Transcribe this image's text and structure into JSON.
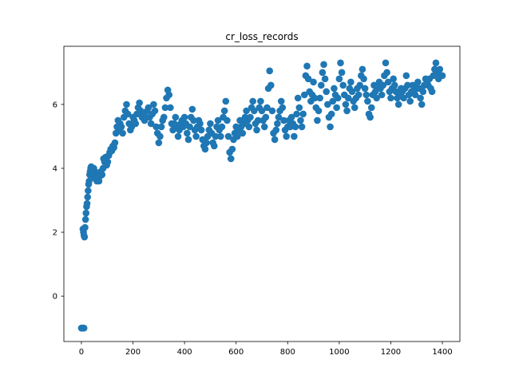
{
  "chart_data": {
    "type": "scatter",
    "title": "cr_loss_records",
    "xlabel": "",
    "ylabel": "",
    "xlim": [
      -68,
      1468
    ],
    "ylim": [
      -1.42,
      7.82
    ],
    "xticks": [
      0,
      200,
      400,
      600,
      800,
      1000,
      1200,
      1400
    ],
    "yticks": [
      0,
      2,
      4,
      6
    ],
    "grid": false,
    "marker_color": "#1f77b4",
    "points": [
      [
        0,
        -1.0
      ],
      [
        2,
        -1.0
      ],
      [
        4,
        -1.0
      ],
      [
        6,
        -1.0
      ],
      [
        8,
        -1.0
      ],
      [
        10,
        -1.0
      ],
      [
        6,
        2.1
      ],
      [
        8,
        2.0
      ],
      [
        10,
        1.9
      ],
      [
        12,
        1.85
      ],
      [
        14,
        2.15
      ],
      [
        16,
        2.4
      ],
      [
        18,
        2.6
      ],
      [
        20,
        2.8
      ],
      [
        22,
        2.9
      ],
      [
        24,
        3.1
      ],
      [
        26,
        3.3
      ],
      [
        28,
        3.5
      ],
      [
        30,
        3.6
      ],
      [
        32,
        3.8
      ],
      [
        34,
        3.9
      ],
      [
        36,
        4.0
      ],
      [
        38,
        4.05
      ],
      [
        40,
        3.9
      ],
      [
        42,
        4.0
      ],
      [
        45,
        3.8
      ],
      [
        48,
        4.0
      ],
      [
        50,
        3.7
      ],
      [
        53,
        3.9
      ],
      [
        56,
        3.8
      ],
      [
        60,
        3.6
      ],
      [
        64,
        3.7
      ],
      [
        68,
        3.6
      ],
      [
        72,
        3.75
      ],
      [
        76,
        3.9
      ],
      [
        80,
        3.8
      ],
      [
        84,
        4.0
      ],
      [
        86,
        4.3
      ],
      [
        90,
        4.2
      ],
      [
        94,
        4.35
      ],
      [
        98,
        4.1
      ],
      [
        102,
        4.2
      ],
      [
        106,
        4.4
      ],
      [
        110,
        4.5
      ],
      [
        114,
        4.6
      ],
      [
        118,
        4.55
      ],
      [
        122,
        4.7
      ],
      [
        126,
        4.65
      ],
      [
        130,
        4.8
      ],
      [
        134,
        5.1
      ],
      [
        138,
        5.3
      ],
      [
        142,
        5.5
      ],
      [
        146,
        5.2
      ],
      [
        150,
        5.4
      ],
      [
        155,
        5.3
      ],
      [
        160,
        5.1
      ],
      [
        165,
        5.6
      ],
      [
        170,
        5.8
      ],
      [
        175,
        6.0
      ],
      [
        180,
        5.7
      ],
      [
        185,
        5.4
      ],
      [
        190,
        5.2
      ],
      [
        195,
        5.3
      ],
      [
        200,
        5.6
      ],
      [
        205,
        5.5
      ],
      [
        210,
        5.4
      ],
      [
        215,
        5.7
      ],
      [
        220,
        5.9
      ],
      [
        225,
        6.05
      ],
      [
        230,
        5.8
      ],
      [
        235,
        5.6
      ],
      [
        240,
        5.7
      ],
      [
        245,
        5.5
      ],
      [
        250,
        5.6
      ],
      [
        255,
        5.8
      ],
      [
        260,
        5.9
      ],
      [
        265,
        5.6
      ],
      [
        270,
        5.4
      ],
      [
        275,
        5.7
      ],
      [
        280,
        6.0
      ],
      [
        285,
        5.8
      ],
      [
        290,
        5.3
      ],
      [
        295,
        5.1
      ],
      [
        300,
        4.8
      ],
      [
        305,
        5.0
      ],
      [
        310,
        5.3
      ],
      [
        315,
        5.5
      ],
      [
        320,
        5.6
      ],
      [
        325,
        5.9
      ],
      [
        330,
        6.2
      ],
      [
        335,
        6.45
      ],
      [
        340,
        6.3
      ],
      [
        345,
        5.9
      ],
      [
        350,
        5.4
      ],
      [
        355,
        5.2
      ],
      [
        360,
        5.4
      ],
      [
        365,
        5.6
      ],
      [
        370,
        5.3
      ],
      [
        375,
        5.0
      ],
      [
        380,
        5.2
      ],
      [
        385,
        5.4
      ],
      [
        390,
        5.5
      ],
      [
        395,
        5.3
      ],
      [
        400,
        5.6
      ],
      [
        405,
        5.4
      ],
      [
        410,
        5.1
      ],
      [
        415,
        4.9
      ],
      [
        420,
        5.3
      ],
      [
        425,
        5.6
      ],
      [
        430,
        5.85
      ],
      [
        435,
        5.5
      ],
      [
        440,
        5.2
      ],
      [
        445,
        5.0
      ],
      [
        450,
        5.3
      ],
      [
        455,
        5.5
      ],
      [
        460,
        5.4
      ],
      [
        465,
        5.2
      ],
      [
        470,
        4.9
      ],
      [
        475,
        4.7
      ],
      [
        480,
        4.6
      ],
      [
        485,
        4.8
      ],
      [
        490,
        5.0
      ],
      [
        495,
        5.2
      ],
      [
        500,
        5.4
      ],
      [
        505,
        5.1
      ],
      [
        510,
        4.8
      ],
      [
        515,
        4.7
      ],
      [
        520,
        5.0
      ],
      [
        525,
        5.3
      ],
      [
        530,
        5.5
      ],
      [
        535,
        5.2
      ],
      [
        540,
        5.0
      ],
      [
        545,
        5.3
      ],
      [
        550,
        5.6
      ],
      [
        555,
        5.8
      ],
      [
        560,
        6.1
      ],
      [
        565,
        5.5
      ],
      [
        570,
        5.0
      ],
      [
        575,
        4.5
      ],
      [
        580,
        4.3
      ],
      [
        585,
        4.6
      ],
      [
        590,
        4.9
      ],
      [
        595,
        5.1
      ],
      [
        600,
        5.3
      ],
      [
        605,
        5.0
      ],
      [
        610,
        5.2
      ],
      [
        615,
        5.5
      ],
      [
        620,
        5.3
      ],
      [
        625,
        5.1
      ],
      [
        630,
        5.4
      ],
      [
        635,
        5.6
      ],
      [
        640,
        5.8
      ],
      [
        645,
        5.5
      ],
      [
        650,
        5.3
      ],
      [
        655,
        5.6
      ],
      [
        660,
        5.9
      ],
      [
        665,
        6.1
      ],
      [
        670,
        5.8
      ],
      [
        675,
        5.4
      ],
      [
        680,
        5.2
      ],
      [
        685,
        5.5
      ],
      [
        690,
        5.9
      ],
      [
        695,
        6.1
      ],
      [
        700,
        5.8
      ],
      [
        705,
        5.5
      ],
      [
        710,
        5.3
      ],
      [
        715,
        5.6
      ],
      [
        720,
        5.9
      ],
      [
        725,
        6.5
      ],
      [
        730,
        7.05
      ],
      [
        735,
        6.6
      ],
      [
        740,
        5.8
      ],
      [
        745,
        5.1
      ],
      [
        750,
        4.9
      ],
      [
        755,
        5.2
      ],
      [
        760,
        5.4
      ],
      [
        765,
        5.6
      ],
      [
        770,
        5.8
      ],
      [
        775,
        6.1
      ],
      [
        780,
        5.9
      ],
      [
        785,
        5.5
      ],
      [
        790,
        5.2
      ],
      [
        795,
        5.0
      ],
      [
        800,
        5.3
      ],
      [
        805,
        5.5
      ],
      [
        810,
        5.3
      ],
      [
        815,
        5.6
      ],
      [
        820,
        5.4
      ],
      [
        825,
        5.0
      ],
      [
        830,
        5.3
      ],
      [
        835,
        5.7
      ],
      [
        840,
        6.2
      ],
      [
        845,
        5.9
      ],
      [
        850,
        5.5
      ],
      [
        855,
        5.3
      ],
      [
        860,
        5.7
      ],
      [
        865,
        6.3
      ],
      [
        870,
        6.9
      ],
      [
        875,
        7.2
      ],
      [
        880,
        6.8
      ],
      [
        885,
        6.4
      ],
      [
        890,
        6.1
      ],
      [
        895,
        6.3
      ],
      [
        900,
        6.7
      ],
      [
        905,
        6.2
      ],
      [
        910,
        5.9
      ],
      [
        915,
        5.5
      ],
      [
        920,
        5.8
      ],
      [
        925,
        6.2
      ],
      [
        930,
        6.6
      ],
      [
        935,
        7.0
      ],
      [
        940,
        7.25
      ],
      [
        945,
        6.8
      ],
      [
        950,
        6.4
      ],
      [
        955,
        6.0
      ],
      [
        960,
        5.6
      ],
      [
        965,
        5.3
      ],
      [
        970,
        5.7
      ],
      [
        975,
        6.1
      ],
      [
        980,
        6.5
      ],
      [
        985,
        6.3
      ],
      [
        990,
        5.9
      ],
      [
        995,
        6.2
      ],
      [
        1000,
        6.8
      ],
      [
        1005,
        7.3
      ],
      [
        1010,
        7.0
      ],
      [
        1015,
        6.6
      ],
      [
        1020,
        6.3
      ],
      [
        1025,
        6.0
      ],
      [
        1030,
        5.8
      ],
      [
        1035,
        6.2
      ],
      [
        1040,
        6.5
      ],
      [
        1045,
        6.7
      ],
      [
        1050,
        6.4
      ],
      [
        1055,
        6.1
      ],
      [
        1060,
        5.9
      ],
      [
        1065,
        6.2
      ],
      [
        1070,
        6.5
      ],
      [
        1075,
        6.3
      ],
      [
        1080,
        6.6
      ],
      [
        1085,
        6.9
      ],
      [
        1090,
        7.1
      ],
      [
        1095,
        6.8
      ],
      [
        1100,
        6.5
      ],
      [
        1105,
        6.3
      ],
      [
        1110,
        6.1
      ],
      [
        1115,
        5.7
      ],
      [
        1120,
        5.6
      ],
      [
        1125,
        5.9
      ],
      [
        1130,
        6.3
      ],
      [
        1135,
        6.6
      ],
      [
        1140,
        6.4
      ],
      [
        1145,
        6.2
      ],
      [
        1150,
        6.5
      ],
      [
        1155,
        6.7
      ],
      [
        1160,
        6.5
      ],
      [
        1165,
        6.3
      ],
      [
        1170,
        6.6
      ],
      [
        1175,
        6.9
      ],
      [
        1180,
        7.3
      ],
      [
        1185,
        7.0
      ],
      [
        1190,
        6.7
      ],
      [
        1195,
        6.4
      ],
      [
        1200,
        6.2
      ],
      [
        1205,
        6.5
      ],
      [
        1210,
        6.8
      ],
      [
        1215,
        6.6
      ],
      [
        1220,
        6.4
      ],
      [
        1225,
        6.2
      ],
      [
        1230,
        6.0
      ],
      [
        1235,
        6.3
      ],
      [
        1240,
        6.5
      ],
      [
        1245,
        6.4
      ],
      [
        1250,
        6.2
      ],
      [
        1255,
        6.5
      ],
      [
        1260,
        6.9
      ],
      [
        1265,
        6.6
      ],
      [
        1270,
        6.3
      ],
      [
        1275,
        6.1
      ],
      [
        1280,
        6.4
      ],
      [
        1285,
        6.6
      ],
      [
        1290,
        6.4
      ],
      [
        1295,
        6.3
      ],
      [
        1300,
        6.5
      ],
      [
        1305,
        6.7
      ],
      [
        1310,
        6.5
      ],
      [
        1315,
        6.2
      ],
      [
        1320,
        6.0
      ],
      [
        1325,
        6.4
      ],
      [
        1330,
        6.6
      ],
      [
        1335,
        6.8
      ],
      [
        1340,
        6.7
      ],
      [
        1345,
        6.6
      ],
      [
        1350,
        6.8
      ],
      [
        1355,
        6.5
      ],
      [
        1360,
        6.4
      ],
      [
        1365,
        6.9
      ],
      [
        1370,
        7.1
      ],
      [
        1375,
        7.3
      ],
      [
        1380,
        7.0
      ],
      [
        1385,
        6.8
      ],
      [
        1390,
        7.1
      ],
      [
        1395,
        6.9
      ],
      [
        1400,
        6.9
      ]
    ]
  }
}
